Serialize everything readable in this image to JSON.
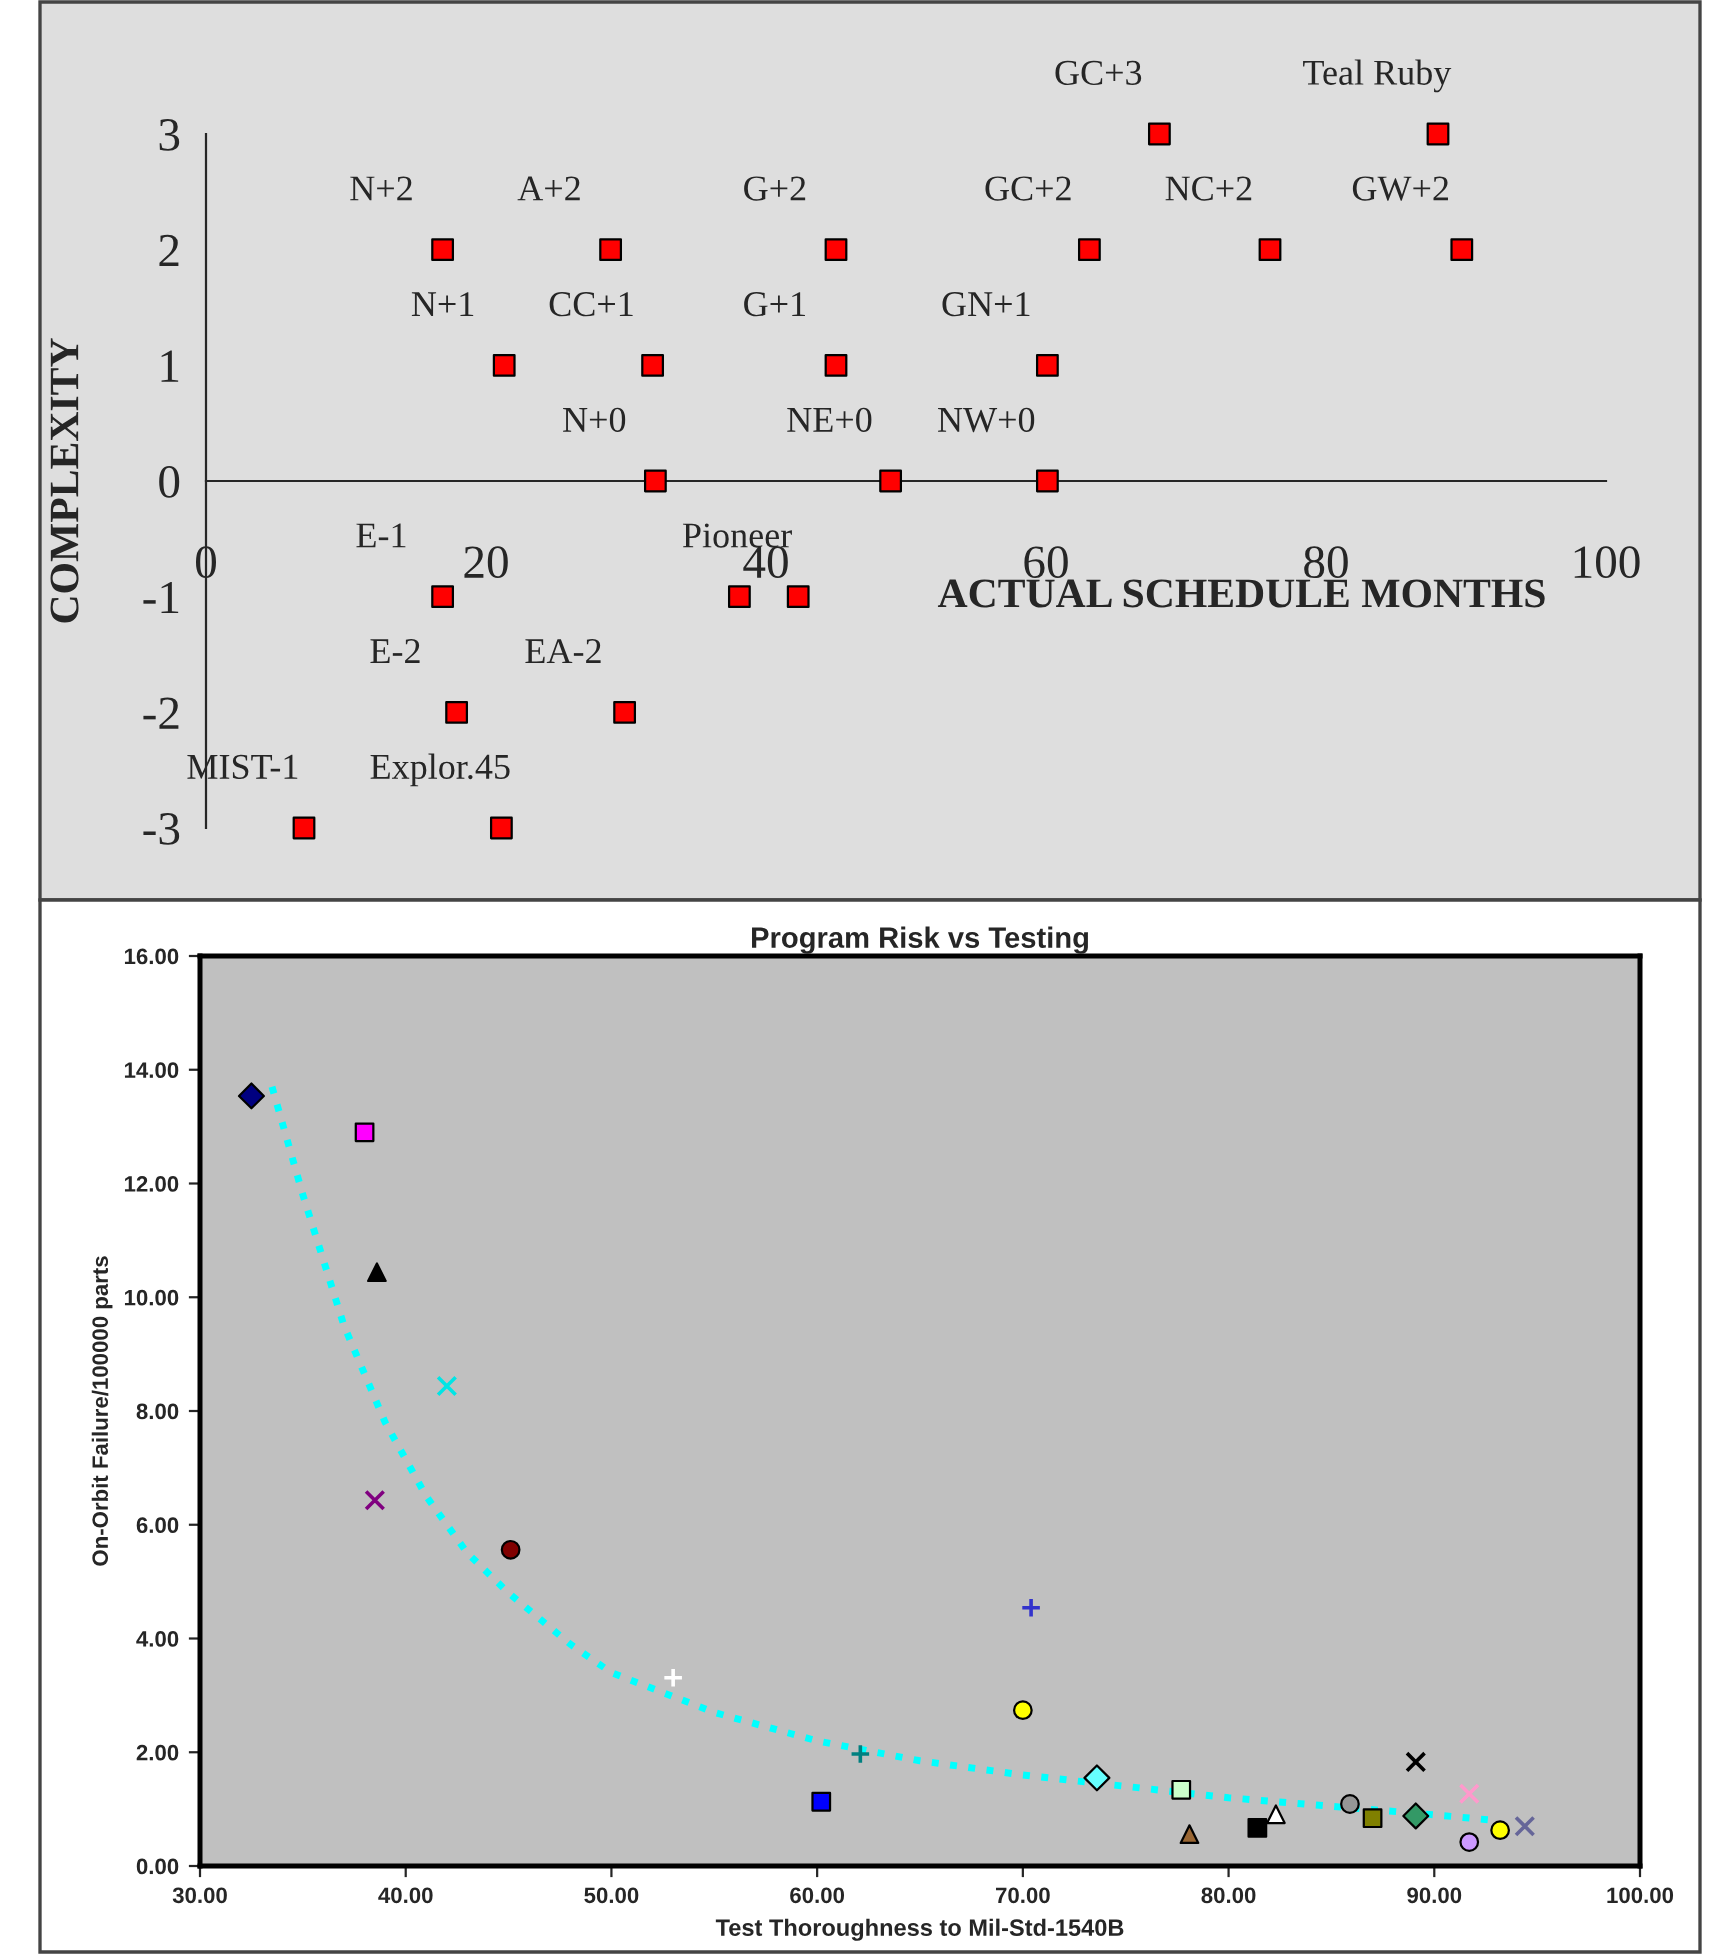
{
  "chart_data": [
    {
      "type": "scatter",
      "xlabel": "ACTUAL SCHEDULE MONTHS",
      "ylabel": "COMPLEXITY",
      "x": [
        16.9,
        28.9,
        45,
        63.1,
        76,
        89.7,
        68.1,
        88,
        21.3,
        31.9,
        45,
        60.1,
        32.1,
        48.9,
        60.1,
        16.9,
        38.1,
        42.3,
        17.9,
        29.9,
        7,
        21.1
      ],
      "series": [
        {
          "color": "#ff0000",
          "values": [
            2,
            2,
            2,
            2,
            2,
            2,
            3,
            3,
            1,
            1,
            1,
            1,
            0,
            0,
            0,
            -1,
            -1,
            -1,
            -2,
            -2,
            -3,
            -3
          ],
          "value_labels": [
            "N+2",
            "A+2",
            "G+2",
            "GC+2",
            "NC+2",
            "GW+2",
            "GC+3",
            "Teal Ruby",
            "N+1",
            "CC+1",
            "G+1",
            "GN+1",
            "N+0",
            "NE+0",
            "NW+0",
            "E-1",
            null,
            "Pioneer",
            "E-2",
            "EA-2",
            "MIST-1",
            "Explor.45"
          ]
        }
      ],
      "marker": "square",
      "xlim": [
        0,
        100
      ],
      "ylim": [
        -3,
        3
      ],
      "xticks": [
        0,
        20,
        40,
        60,
        80,
        100
      ],
      "yticks": [
        -3,
        -2,
        -1,
        0,
        1,
        2,
        3
      ],
      "grid": false,
      "legend": false
    },
    {
      "type": "scatter",
      "title": "Program Risk vs Testing",
      "xlabel": "Test Thoroughness to Mil-Std-1540B",
      "ylabel": "On-Orbit Failure/100000 parts",
      "xlim": [
        30,
        100
      ],
      "ylim": [
        0,
        16
      ],
      "xticks": [
        {
          "value": 30,
          "label": "30.00"
        },
        {
          "value": 40,
          "label": "40.00"
        },
        {
          "value": 50,
          "label": "50.00"
        },
        {
          "value": 60,
          "label": "60.00"
        },
        {
          "value": 70,
          "label": "70.00"
        },
        {
          "value": 80,
          "label": "80.00"
        },
        {
          "value": 90,
          "label": "90.00"
        },
        {
          "value": 100,
          "label": "100.00"
        }
      ],
      "yticks": [
        {
          "value": 0,
          "label": "0.00"
        },
        {
          "value": 2,
          "label": "2.00"
        },
        {
          "value": 4,
          "label": "4.00"
        },
        {
          "value": 6,
          "label": "6.00"
        },
        {
          "value": 8,
          "label": "8.00"
        },
        {
          "value": 10,
          "label": "10.00"
        },
        {
          "value": 12,
          "label": "12.00"
        },
        {
          "value": 14,
          "label": "14.00"
        },
        {
          "value": 16,
          "label": "16.00"
        }
      ],
      "grid": false,
      "series": [
        {
          "x": [
            32.5
          ],
          "values": [
            13.54
          ],
          "color": "#000080",
          "marker": "diamond"
        },
        {
          "x": [
            38.0
          ],
          "values": [
            12.9
          ],
          "color": "#ff00ff",
          "marker": "square"
        },
        {
          "x": [
            38.6
          ],
          "values": [
            10.44
          ],
          "color": "#000000",
          "marker": "triangle"
        },
        {
          "x": [
            42.0
          ],
          "values": [
            8.44
          ],
          "color": "#00e5e5",
          "marker": "cross"
        },
        {
          "x": [
            38.5
          ],
          "values": [
            6.43
          ],
          "color": "#800080",
          "marker": "cross"
        },
        {
          "x": [
            45.1
          ],
          "values": [
            5.56
          ],
          "color": "#800000",
          "marker": "circle"
        },
        {
          "x": [
            53.0
          ],
          "values": [
            3.31
          ],
          "color": "#ffffff",
          "marker": "plus"
        },
        {
          "x": [
            62.1
          ],
          "values": [
            1.97
          ],
          "color": "#008080",
          "marker": "plus"
        },
        {
          "x": [
            60.2
          ],
          "values": [
            1.13
          ],
          "color": "#0000ff",
          "marker": "square"
        },
        {
          "x": [
            70.4
          ],
          "values": [
            4.54
          ],
          "color": "#3333cc",
          "marker": "plus"
        },
        {
          "x": [
            70.0
          ],
          "values": [
            2.74
          ],
          "color": "#ffff00",
          "marker": "circle"
        },
        {
          "x": [
            73.6
          ],
          "values": [
            1.55
          ],
          "color": "#66ffff",
          "marker": "diamond"
        },
        {
          "x": [
            77.7
          ],
          "values": [
            1.34
          ],
          "color": "#ccffcc",
          "marker": "square"
        },
        {
          "x": [
            78.1
          ],
          "values": [
            0.56
          ],
          "color": "#996633",
          "marker": "triangle"
        },
        {
          "x": [
            81.4
          ],
          "values": [
            0.67
          ],
          "color": "#000000",
          "marker": "square"
        },
        {
          "x": [
            82.3
          ],
          "values": [
            0.91
          ],
          "color": "#ffffff",
          "marker": "triangle"
        },
        {
          "x": [
            85.9
          ],
          "values": [
            1.09
          ],
          "color": "#969696",
          "marker": "circle"
        },
        {
          "x": [
            87.0
          ],
          "values": [
            0.84
          ],
          "color": "#808000",
          "marker": "square"
        },
        {
          "x": [
            89.1
          ],
          "values": [
            0.88
          ],
          "color": "#339966",
          "marker": "diamond"
        },
        {
          "x": [
            89.1
          ],
          "values": [
            1.83
          ],
          "color": "#000000",
          "marker": "cross"
        },
        {
          "x": [
            91.7
          ],
          "values": [
            1.27
          ],
          "color": "#ff99cc",
          "marker": "cross"
        },
        {
          "x": [
            91.7
          ],
          "values": [
            0.42
          ],
          "color": "#cc99ff",
          "marker": "circle"
        },
        {
          "x": [
            93.2
          ],
          "values": [
            0.63
          ],
          "color": "#ffff00",
          "marker": "circle"
        },
        {
          "x": [
            94.4
          ],
          "values": [
            0.7
          ],
          "color": "#666699",
          "marker": "cross"
        },
        {
          "type": "line",
          "color": "#00ffff",
          "line_style": "dotted",
          "marker": "none",
          "x": [
            33.5,
            35,
            37,
            39,
            41,
            43,
            45,
            48,
            50,
            55,
            60,
            65,
            70,
            75,
            80,
            85,
            90,
            93
          ],
          "values": [
            13.7,
            11.8,
            9.5,
            7.8,
            6.5,
            5.5,
            4.8,
            3.9,
            3.4,
            2.7,
            2.2,
            1.85,
            1.6,
            1.4,
            1.2,
            1.05,
            0.9,
            0.8
          ]
        }
      ]
    }
  ]
}
